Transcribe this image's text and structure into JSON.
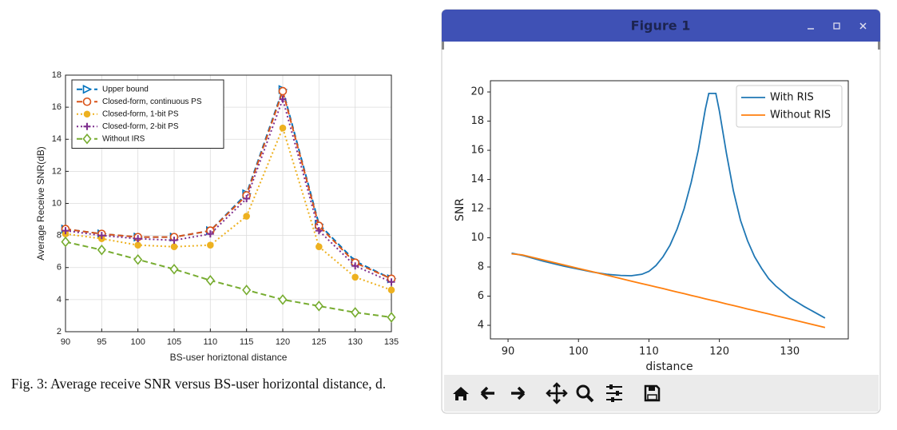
{
  "caption": "Fig. 3: Average receive SNR versus BS-user horizontal distance, d.",
  "window_title": "Figure 1",
  "chart_data": [
    {
      "type": "line",
      "x": [
        90,
        95,
        100,
        105,
        110,
        115,
        120,
        125,
        130,
        135
      ],
      "series": [
        {
          "name": "Upper bound",
          "color": "#0072bd",
          "dash": "dashed",
          "marker": "triangle-right",
          "values": [
            8.4,
            8.1,
            7.9,
            7.9,
            8.3,
            10.6,
            17.1,
            8.7,
            6.4,
            5.3
          ]
        },
        {
          "name": "Closed-form, continuous PS",
          "color": "#d95319",
          "dash": "dashed",
          "marker": "circle",
          "values": [
            8.4,
            8.1,
            7.9,
            7.9,
            8.3,
            10.5,
            17.0,
            8.6,
            6.3,
            5.3
          ]
        },
        {
          "name": "Closed-form, 1-bit PS",
          "color": "#edb120",
          "dash": "dotted",
          "marker": "circle-filled",
          "values": [
            8.1,
            7.8,
            7.4,
            7.3,
            7.4,
            9.2,
            14.7,
            7.3,
            5.4,
            4.6
          ]
        },
        {
          "name": "Closed-form, 2-bit PS",
          "color": "#7e2f8e",
          "dash": "dotted",
          "marker": "plus",
          "values": [
            8.3,
            8.0,
            7.8,
            7.7,
            8.1,
            10.3,
            16.5,
            8.3,
            6.1,
            5.1
          ]
        },
        {
          "name": "Without IRS",
          "color": "#77ac30",
          "dash": "dashed",
          "marker": "diamond",
          "values": [
            7.6,
            7.1,
            6.5,
            5.9,
            5.2,
            4.6,
            4.0,
            3.6,
            3.2,
            2.9
          ]
        }
      ],
      "xlabel": "BS-user horiztonal distance",
      "ylabel": "Average Receive SNR(dB)",
      "xlim": [
        90,
        135
      ],
      "ylim": [
        2,
        18
      ],
      "xticks": [
        90,
        95,
        100,
        105,
        110,
        115,
        120,
        125,
        130,
        135
      ],
      "yticks": [
        2,
        4,
        6,
        8,
        10,
        12,
        14,
        16,
        18
      ],
      "grid": true,
      "legend": "upper left"
    },
    {
      "type": "line",
      "x": [
        90.5,
        92,
        95,
        98,
        100,
        102,
        104,
        106,
        107.5,
        109,
        110,
        111,
        112,
        113,
        114,
        115,
        116,
        117,
        118,
        118.5,
        119.5,
        120,
        121,
        122,
        123,
        124,
        125,
        126,
        127,
        128,
        130,
        132,
        135
      ],
      "series": [
        {
          "name": "With RIS",
          "color": "#1f77b4",
          "values": [
            8.95,
            8.8,
            8.4,
            8.05,
            7.85,
            7.65,
            7.5,
            7.42,
            7.4,
            7.5,
            7.7,
            8.1,
            8.7,
            9.5,
            10.6,
            12.0,
            13.8,
            16.0,
            18.8,
            19.9,
            19.9,
            18.7,
            15.8,
            13.2,
            11.2,
            9.8,
            8.7,
            7.9,
            7.2,
            6.7,
            5.9,
            5.3,
            4.5
          ]
        },
        {
          "name": "Without RIS",
          "color": "#ff7f0e",
          "values": [
            8.9,
            8.83,
            8.48,
            8.13,
            7.9,
            7.67,
            7.44,
            7.21,
            7.03,
            6.86,
            6.75,
            6.63,
            6.52,
            6.4,
            6.28,
            6.17,
            6.05,
            5.94,
            5.82,
            5.76,
            5.65,
            5.59,
            5.47,
            5.36,
            5.24,
            5.12,
            5.01,
            4.89,
            4.78,
            4.66,
            4.43,
            4.2,
            3.85
          ]
        }
      ],
      "xlabel": "distance",
      "ylabel": "SNR",
      "xlim": [
        87.5,
        138.3
      ],
      "ylim": [
        3.07,
        20.77
      ],
      "xticks": [
        90,
        100,
        110,
        120,
        130
      ],
      "yticks": [
        4,
        6,
        8,
        10,
        12,
        14,
        16,
        18,
        20
      ],
      "grid": false,
      "legend": "upper right"
    }
  ]
}
